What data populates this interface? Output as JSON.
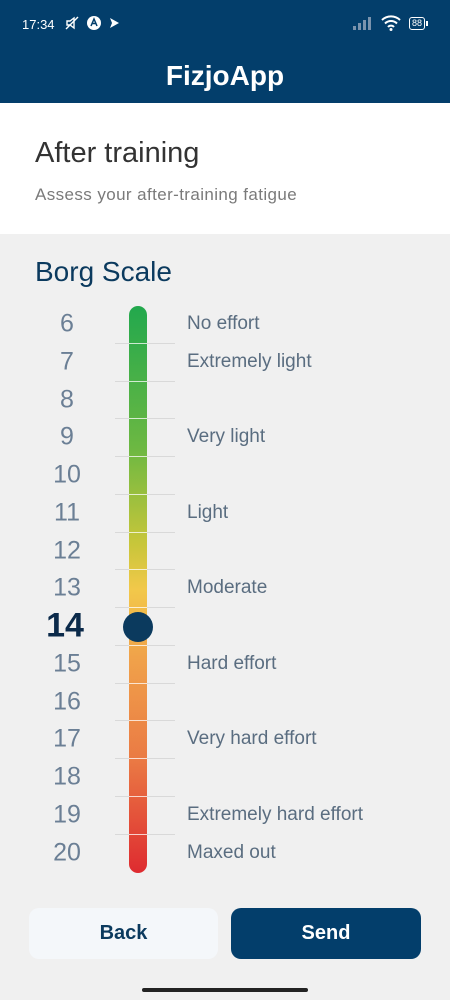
{
  "status_bar": {
    "time": "17:34",
    "battery": "88"
  },
  "app": {
    "title": "FizjoApp"
  },
  "header": {
    "title": "After training",
    "subtitle": "Assess your after-training fatigue"
  },
  "scale": {
    "title": "Borg Scale",
    "selected_value": 14,
    "levels": [
      {
        "value": "6",
        "label": "No effort"
      },
      {
        "value": "7",
        "label": "Extremely light"
      },
      {
        "value": "8",
        "label": ""
      },
      {
        "value": "9",
        "label": "Very light"
      },
      {
        "value": "10",
        "label": ""
      },
      {
        "value": "11",
        "label": "Light"
      },
      {
        "value": "12",
        "label": ""
      },
      {
        "value": "13",
        "label": "Moderate"
      },
      {
        "value": "14",
        "label": ""
      },
      {
        "value": "15",
        "label": "Hard effort"
      },
      {
        "value": "16",
        "label": ""
      },
      {
        "value": "17",
        "label": "Very hard effort"
      },
      {
        "value": "18",
        "label": ""
      },
      {
        "value": "19",
        "label": "Extremely hard effort"
      },
      {
        "value": "20",
        "label": "Maxed out"
      }
    ]
  },
  "buttons": {
    "back": "Back",
    "send": "Send"
  },
  "colors": {
    "primary": "#033e6b",
    "scale_start": "#22a84d",
    "scale_end": "#de2b30"
  }
}
